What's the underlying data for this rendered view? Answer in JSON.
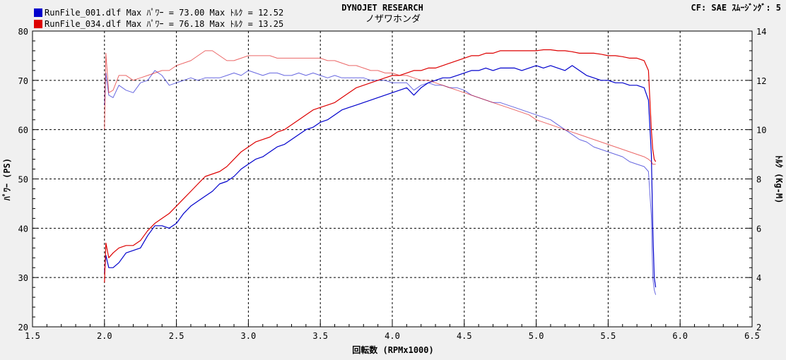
{
  "header": {
    "company": "DYNOJET  RESEARCH",
    "shop": "ノザワホンダ",
    "settings": "CF: SAE  ｽﾑｰｼﾞﾝｸﾞ: 5"
  },
  "colors": {
    "run1": "#0000cc",
    "run2": "#dd0000",
    "background": "#ffffff",
    "grid": "#000000"
  },
  "chart_data": {
    "type": "line",
    "title": "",
    "xlabel": "回転数 (RPMx1000)",
    "ylabel_left": "ﾊﾟﾜｰ (PS)",
    "ylabel_right": "ﾄﾙｸ (Kg-M)",
    "xlim": [
      1.5,
      6.5
    ],
    "ylim_left": [
      20,
      80
    ],
    "ylim_right": [
      2,
      14
    ],
    "x_ticks": [
      "1.5",
      "2.0",
      "2.5",
      "3.0",
      "3.5",
      "4.0",
      "4.5",
      "5.0",
      "5.5",
      "6.0",
      "6.5"
    ],
    "y_left_ticks": [
      "20",
      "30",
      "40",
      "50",
      "60",
      "70",
      "80"
    ],
    "y_right_ticks": [
      "2",
      "4",
      "6",
      "8",
      "10",
      "12",
      "14"
    ],
    "grid": true,
    "legend_position": "top-left",
    "series": [
      {
        "name": "RunFile_001.dlf Max ﾊﾟﾜｰ = 73.00  Max ﾄﾙｸ = 12.52",
        "color": "#0000cc",
        "power_x": [
          2.0,
          2.01,
          2.03,
          2.06,
          2.1,
          2.15,
          2.2,
          2.25,
          2.3,
          2.35,
          2.4,
          2.45,
          2.5,
          2.55,
          2.6,
          2.65,
          2.7,
          2.75,
          2.8,
          2.85,
          2.9,
          2.95,
          3.0,
          3.05,
          3.1,
          3.15,
          3.2,
          3.25,
          3.3,
          3.35,
          3.4,
          3.45,
          3.5,
          3.55,
          3.6,
          3.65,
          3.7,
          3.75,
          3.8,
          3.85,
          3.9,
          3.95,
          4.0,
          4.05,
          4.1,
          4.15,
          4.2,
          4.25,
          4.3,
          4.35,
          4.4,
          4.45,
          4.5,
          4.55,
          4.6,
          4.65,
          4.7,
          4.75,
          4.8,
          4.85,
          4.9,
          4.95,
          5.0,
          5.05,
          5.1,
          5.15,
          5.2,
          5.25,
          5.3,
          5.35,
          5.4,
          5.45,
          5.5,
          5.55,
          5.6,
          5.65,
          5.7,
          5.75,
          5.78,
          5.8,
          5.81,
          5.82,
          5.83
        ],
        "power": [
          31.0,
          34.5,
          32.0,
          32.0,
          33.0,
          35.0,
          35.5,
          36.0,
          38.5,
          40.5,
          40.5,
          40.0,
          41.0,
          43.0,
          44.5,
          45.5,
          46.5,
          47.5,
          49.0,
          49.5,
          50.5,
          52.0,
          53.0,
          54.0,
          54.5,
          55.5,
          56.5,
          57.0,
          58.0,
          59.0,
          60.0,
          60.5,
          61.5,
          62.0,
          63.0,
          64.0,
          64.5,
          65.0,
          65.5,
          66.0,
          66.5,
          67.0,
          67.5,
          68.0,
          68.5,
          67.0,
          68.5,
          69.5,
          70.0,
          70.5,
          70.5,
          71.0,
          71.5,
          72.0,
          72.0,
          72.5,
          72.0,
          72.5,
          72.5,
          72.5,
          72.0,
          72.5,
          73.0,
          72.5,
          73.0,
          72.5,
          72.0,
          73.0,
          72.0,
          71.0,
          70.5,
          70.0,
          70.0,
          69.5,
          69.5,
          69.0,
          69.0,
          68.5,
          66.0,
          55.0,
          40.0,
          30.0,
          28.0
        ],
        "torque_x": [
          2.0,
          2.01,
          2.03,
          2.06,
          2.1,
          2.15,
          2.2,
          2.25,
          2.3,
          2.35,
          2.4,
          2.45,
          2.5,
          2.55,
          2.6,
          2.65,
          2.7,
          2.75,
          2.8,
          2.85,
          2.9,
          2.95,
          3.0,
          3.05,
          3.1,
          3.15,
          3.2,
          3.25,
          3.3,
          3.35,
          3.4,
          3.45,
          3.5,
          3.55,
          3.6,
          3.65,
          3.7,
          3.75,
          3.8,
          3.85,
          3.9,
          3.95,
          4.0,
          4.05,
          4.1,
          4.15,
          4.2,
          4.25,
          4.3,
          4.35,
          4.4,
          4.45,
          4.5,
          4.55,
          4.6,
          4.65,
          4.7,
          4.75,
          4.8,
          4.85,
          4.9,
          4.95,
          5.0,
          5.05,
          5.1,
          5.15,
          5.2,
          5.25,
          5.3,
          5.35,
          5.4,
          5.45,
          5.5,
          5.55,
          5.6,
          5.65,
          5.7,
          5.75,
          5.78,
          5.8,
          5.81,
          5.82,
          5.83
        ],
        "torque": [
          11.0,
          12.3,
          11.4,
          11.3,
          11.8,
          11.6,
          11.5,
          11.9,
          12.0,
          12.4,
          12.2,
          11.8,
          11.9,
          12.0,
          12.1,
          12.0,
          12.1,
          12.1,
          12.1,
          12.2,
          12.3,
          12.2,
          12.4,
          12.3,
          12.2,
          12.3,
          12.3,
          12.2,
          12.2,
          12.3,
          12.2,
          12.3,
          12.2,
          12.1,
          12.2,
          12.1,
          12.1,
          12.1,
          12.1,
          12.0,
          12.0,
          12.0,
          11.9,
          11.9,
          11.9,
          11.6,
          11.8,
          11.9,
          11.8,
          11.8,
          11.7,
          11.7,
          11.6,
          11.4,
          11.3,
          11.2,
          11.1,
          11.1,
          11.0,
          10.9,
          10.8,
          10.7,
          10.6,
          10.5,
          10.4,
          10.2,
          10.0,
          9.8,
          9.6,
          9.5,
          9.3,
          9.2,
          9.1,
          9.0,
          8.9,
          8.7,
          8.6,
          8.5,
          8.3,
          6.5,
          4.0,
          3.5,
          3.3
        ]
      },
      {
        "name": "RunFile_034.dlf Max ﾊﾟﾜｰ = 76.18  Max ﾄﾙｸ = 13.25",
        "color": "#dd0000",
        "power_x": [
          2.0,
          2.01,
          2.03,
          2.06,
          2.1,
          2.15,
          2.2,
          2.25,
          2.3,
          2.35,
          2.4,
          2.45,
          2.5,
          2.55,
          2.6,
          2.65,
          2.7,
          2.75,
          2.8,
          2.85,
          2.9,
          2.95,
          3.0,
          3.05,
          3.1,
          3.15,
          3.2,
          3.25,
          3.3,
          3.35,
          3.4,
          3.45,
          3.5,
          3.55,
          3.6,
          3.65,
          3.7,
          3.75,
          3.8,
          3.85,
          3.9,
          3.95,
          4.0,
          4.05,
          4.1,
          4.15,
          4.2,
          4.25,
          4.3,
          4.35,
          4.4,
          4.45,
          4.5,
          4.55,
          4.6,
          4.65,
          4.7,
          4.75,
          4.8,
          4.85,
          4.9,
          4.95,
          5.0,
          5.05,
          5.1,
          5.15,
          5.2,
          5.25,
          5.3,
          5.35,
          5.4,
          5.45,
          5.5,
          5.55,
          5.6,
          5.65,
          5.7,
          5.75,
          5.78,
          5.8,
          5.81,
          5.82,
          5.83
        ],
        "power": [
          29.0,
          37.0,
          34.0,
          35.0,
          36.0,
          36.5,
          36.5,
          37.5,
          39.5,
          41.0,
          42.0,
          43.0,
          44.5,
          46.0,
          47.5,
          49.0,
          50.5,
          51.0,
          51.5,
          52.5,
          54.0,
          55.5,
          56.5,
          57.5,
          58.0,
          58.5,
          59.5,
          60.0,
          61.0,
          62.0,
          63.0,
          64.0,
          64.5,
          65.0,
          65.5,
          66.5,
          67.5,
          68.5,
          69.0,
          69.5,
          70.0,
          70.5,
          71.0,
          71.0,
          71.5,
          72.0,
          72.0,
          72.5,
          72.5,
          73.0,
          73.5,
          74.0,
          74.5,
          75.0,
          75.0,
          75.5,
          75.5,
          76.0,
          76.0,
          76.0,
          76.0,
          76.0,
          76.0,
          76.2,
          76.2,
          76.0,
          76.0,
          75.8,
          75.5,
          75.5,
          75.5,
          75.3,
          75.0,
          75.0,
          74.8,
          74.5,
          74.5,
          74.0,
          72.0,
          60.0,
          56.0,
          54.0,
          53.5
        ],
        "torque_x": [
          2.0,
          2.01,
          2.03,
          2.06,
          2.1,
          2.15,
          2.2,
          2.25,
          2.3,
          2.35,
          2.4,
          2.45,
          2.5,
          2.55,
          2.6,
          2.65,
          2.7,
          2.75,
          2.8,
          2.85,
          2.9,
          2.95,
          3.0,
          3.05,
          3.1,
          3.15,
          3.2,
          3.25,
          3.3,
          3.35,
          3.4,
          3.45,
          3.5,
          3.55,
          3.6,
          3.65,
          3.7,
          3.75,
          3.8,
          3.85,
          3.9,
          3.95,
          4.0,
          4.05,
          4.1,
          4.15,
          4.2,
          4.25,
          4.3,
          4.35,
          4.4,
          4.45,
          4.5,
          4.55,
          4.6,
          4.65,
          4.7,
          4.75,
          4.8,
          4.85,
          4.9,
          4.95,
          5.0,
          5.05,
          5.1,
          5.15,
          5.2,
          5.25,
          5.3,
          5.35,
          5.4,
          5.45,
          5.5,
          5.55,
          5.6,
          5.65,
          5.7,
          5.75,
          5.78,
          5.8,
          5.81,
          5.82,
          5.83
        ],
        "torque": [
          10.0,
          13.1,
          11.5,
          11.6,
          12.2,
          12.2,
          12.0,
          12.1,
          12.2,
          12.3,
          12.4,
          12.4,
          12.6,
          12.7,
          12.8,
          13.0,
          13.2,
          13.2,
          13.0,
          12.8,
          12.8,
          12.9,
          13.0,
          13.0,
          13.0,
          13.0,
          12.9,
          12.9,
          12.9,
          12.9,
          12.9,
          12.9,
          12.9,
          12.8,
          12.8,
          12.7,
          12.6,
          12.6,
          12.5,
          12.4,
          12.4,
          12.3,
          12.3,
          12.2,
          12.2,
          12.1,
          12.0,
          12.0,
          11.9,
          11.8,
          11.7,
          11.6,
          11.5,
          11.4,
          11.3,
          11.2,
          11.1,
          11.0,
          10.9,
          10.8,
          10.7,
          10.6,
          10.4,
          10.3,
          10.2,
          10.1,
          10.0,
          9.9,
          9.8,
          9.7,
          9.6,
          9.5,
          9.4,
          9.3,
          9.2,
          9.1,
          9.0,
          8.9,
          8.8,
          8.7,
          8.6,
          8.6,
          8.6
        ]
      }
    ]
  }
}
